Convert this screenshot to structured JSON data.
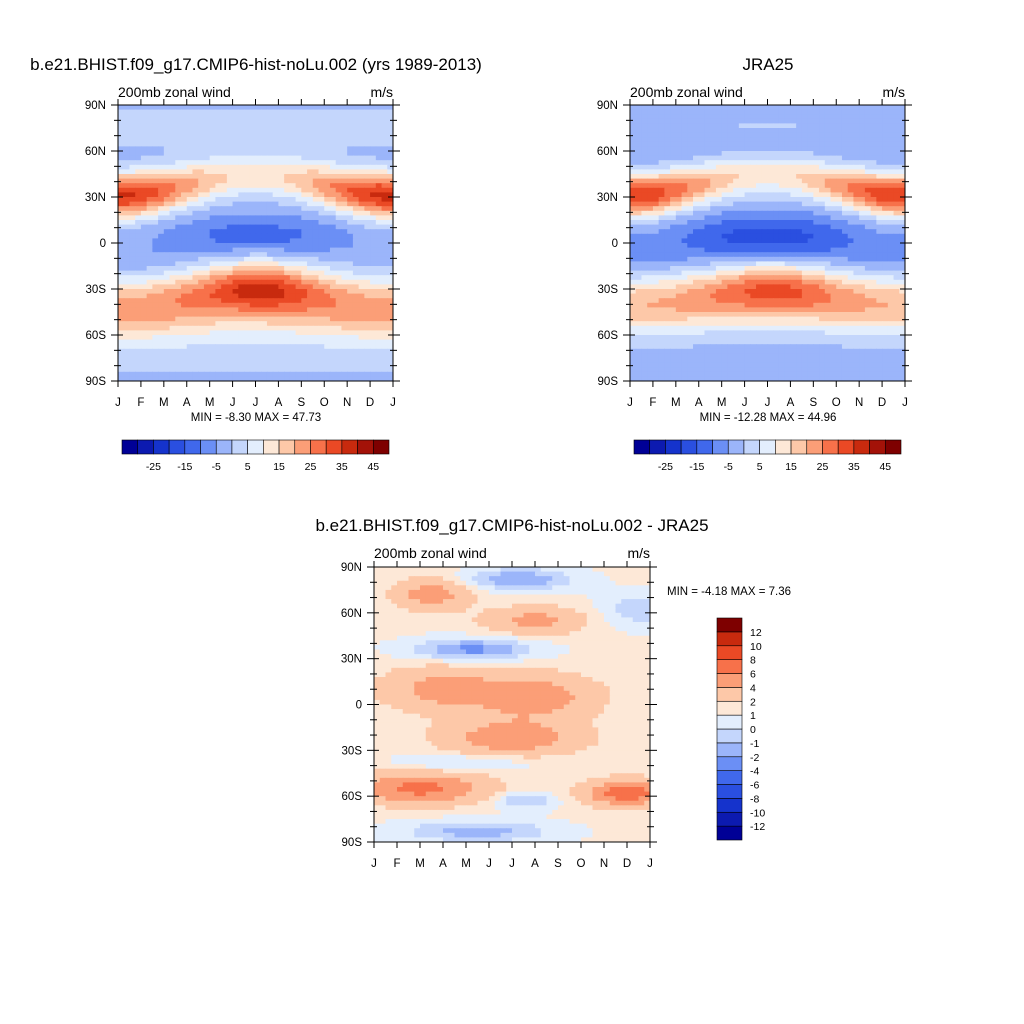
{
  "chart_data": [
    {
      "type": "heatmap",
      "title": "b.e21.BHIST.f09_g17.CMIP6-hist-noLu.002 (yrs 1989-2013)",
      "subtitle_left": "200mb zonal wind",
      "subtitle_right": "m/s",
      "x_tick_labels": [
        "J",
        "F",
        "M",
        "A",
        "M",
        "J",
        "J",
        "A",
        "S",
        "O",
        "N",
        "D",
        "J"
      ],
      "y_tick_labels": [
        "90N",
        "60N",
        "30N",
        "0",
        "30S",
        "60S",
        "90S"
      ],
      "y_values": [
        90,
        60,
        30,
        0,
        -30,
        -60,
        -90
      ],
      "months": [
        1,
        2,
        3,
        4,
        5,
        6,
        7,
        8,
        9,
        10,
        11,
        12,
        13
      ],
      "min_max_text": "MIN =  -8.30 MAX =  47.73",
      "min": -8.3,
      "max": 47.73,
      "colorbar": {
        "levels": [
          -30,
          -25,
          -20,
          -15,
          -10,
          -5,
          0,
          5,
          10,
          15,
          20,
          25,
          30,
          35,
          40,
          45
        ],
        "labels": [
          "-25",
          "-15",
          "-5",
          "5",
          "15",
          "25",
          "35",
          "45"
        ],
        "colors": [
          "#000096",
          "#0c1ab0",
          "#1533cc",
          "#2a4fe0",
          "#4068ec",
          "#6b8ff5",
          "#9bb5fa",
          "#c4d6fc",
          "#e3eefd",
          "#fde8d7",
          "#fdc8a8",
          "#fb9e77",
          "#f7714a",
          "#ea4925",
          "#c82a0e",
          "#a31208",
          "#7e0000"
        ]
      },
      "model": "A"
    },
    {
      "type": "heatmap",
      "title": "JRA25",
      "subtitle_left": "200mb zonal wind",
      "subtitle_right": "m/s",
      "x_tick_labels": [
        "J",
        "F",
        "M",
        "A",
        "M",
        "J",
        "J",
        "A",
        "S",
        "O",
        "N",
        "D",
        "J"
      ],
      "y_tick_labels": [
        "90N",
        "60N",
        "30N",
        "0",
        "30S",
        "60S",
        "90S"
      ],
      "y_values": [
        90,
        60,
        30,
        0,
        -30,
        -60,
        -90
      ],
      "months": [
        1,
        2,
        3,
        4,
        5,
        6,
        7,
        8,
        9,
        10,
        11,
        12,
        13
      ],
      "min_max_text": "MIN = -12.28 MAX =  44.96",
      "min": -12.28,
      "max": 44.96,
      "colorbar": {
        "levels": [
          -30,
          -25,
          -20,
          -15,
          -10,
          -5,
          0,
          5,
          10,
          15,
          20,
          25,
          30,
          35,
          40,
          45
        ],
        "labels": [
          "-25",
          "-15",
          "-5",
          "5",
          "15",
          "25",
          "35",
          "45"
        ],
        "colors": [
          "#000096",
          "#0c1ab0",
          "#1533cc",
          "#2a4fe0",
          "#4068ec",
          "#6b8ff5",
          "#9bb5fa",
          "#c4d6fc",
          "#e3eefd",
          "#fde8d7",
          "#fdc8a8",
          "#fb9e77",
          "#f7714a",
          "#ea4925",
          "#c82a0e",
          "#a31208",
          "#7e0000"
        ]
      },
      "model": "B"
    },
    {
      "type": "heatmap",
      "title": "b.e21.BHIST.f09_g17.CMIP6-hist-noLu.002 - JRA25",
      "subtitle_left": "200mb zonal wind",
      "subtitle_right": "m/s",
      "x_tick_labels": [
        "J",
        "F",
        "M",
        "A",
        "M",
        "J",
        "J",
        "A",
        "S",
        "O",
        "N",
        "D",
        "J"
      ],
      "y_tick_labels": [
        "90N",
        "60N",
        "30N",
        "0",
        "30S",
        "60S",
        "90S"
      ],
      "y_values": [
        90,
        60,
        30,
        0,
        -30,
        -60,
        -90
      ],
      "months": [
        1,
        2,
        3,
        4,
        5,
        6,
        7,
        8,
        9,
        10,
        11,
        12,
        13
      ],
      "min_max_text": "MIN =  -4.18 MAX =   7.36",
      "min": -4.18,
      "max": 7.36,
      "colorbar": {
        "levels": [
          -12,
          -10,
          -8,
          -6,
          -4,
          -2,
          -1,
          0,
          1,
          2,
          4,
          6,
          8,
          10,
          12
        ],
        "labels": [
          "-12",
          "-10",
          "-8",
          "-6",
          "-4",
          "-2",
          "-1",
          "0",
          "1",
          "2",
          "4",
          "6",
          "8",
          "10",
          "12"
        ],
        "colors": [
          "#000096",
          "#0c1ab0",
          "#1533cc",
          "#2a4fe0",
          "#4068ec",
          "#6b8ff5",
          "#9bb5fa",
          "#c4d6fc",
          "#e3eefd",
          "#fde8d7",
          "#fdc8a8",
          "#fb9e77",
          "#f7714a",
          "#ea4925",
          "#c82a0e",
          "#7e0000"
        ]
      },
      "model": "D"
    }
  ]
}
